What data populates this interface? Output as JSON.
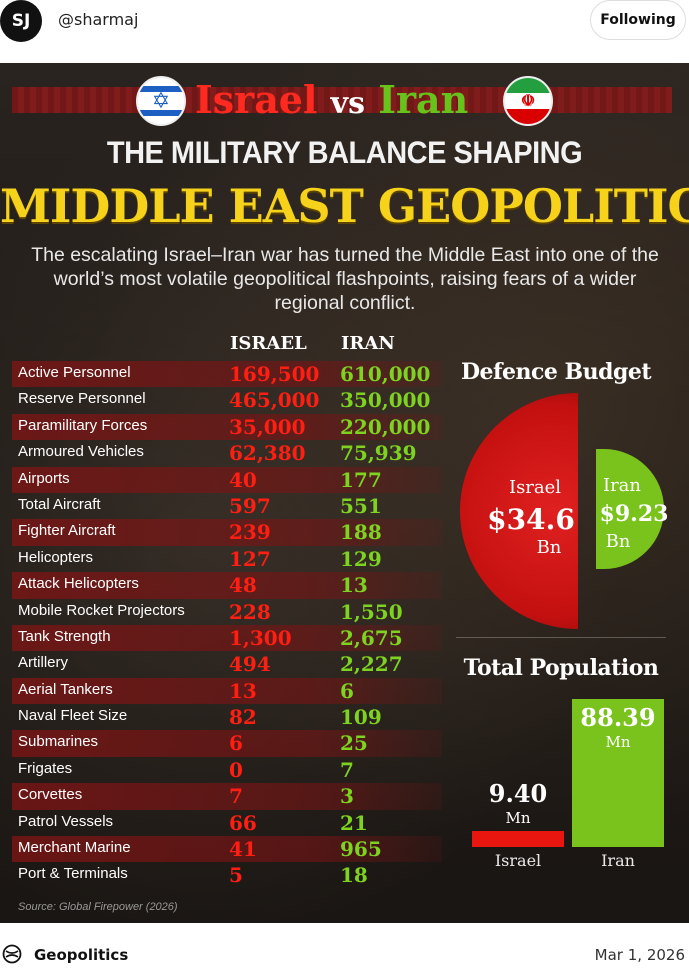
{
  "post": {
    "avatar_initials": "SJ",
    "username": "@sharmaj",
    "follow_label": "Following",
    "community": "Geopolitics",
    "date": "Mar 1, 2026"
  },
  "infographic": {
    "title_israel": "Israel",
    "title_vs": "vs",
    "title_iran": "Iran",
    "subtitle": "THE MILITARY BALANCE SHAPING",
    "headline": "MIDDLE EAST GEOPOLITICS",
    "intro": "The escalating Israel–Iran war has turned the Middle East into one of the world’s most volatile geopolitical flashpoints, raising fears of a wider regional conflict.",
    "col_israel": "ISRAEL",
    "col_iran": "IRAN",
    "source": "Source: Global Firepower (2026)",
    "colors": {
      "israel": "#ff1e12",
      "iran": "#7ed321",
      "headline": "#f7d21b"
    },
    "rows": [
      {
        "label": "Active Personnel",
        "israel": "169,500",
        "iran": "610,000"
      },
      {
        "label": "Reserve Personnel",
        "israel": "465,000",
        "iran": "350,000"
      },
      {
        "label": "Paramilitary Forces",
        "israel": "35,000",
        "iran": "220,000"
      },
      {
        "label": "Armoured Vehicles",
        "israel": "62,380",
        "iran": "75,939"
      },
      {
        "label": "Airports",
        "israel": "40",
        "iran": "177"
      },
      {
        "label": "Total Aircraft",
        "israel": "597",
        "iran": "551"
      },
      {
        "label": "Fighter Aircraft",
        "israel": "239",
        "iran": "188"
      },
      {
        "label": "Helicopters",
        "israel": "127",
        "iran": "129"
      },
      {
        "label": "Attack Helicopters",
        "israel": "48",
        "iran": "13"
      },
      {
        "label": "Mobile Rocket Projectors",
        "israel": "228",
        "iran": "1,550"
      },
      {
        "label": "Tank Strength",
        "israel": "1,300",
        "iran": "2,675"
      },
      {
        "label": "Artillery",
        "israel": "494",
        "iran": "2,227"
      },
      {
        "label": "Aerial Tankers",
        "israel": "13",
        "iran": "6"
      },
      {
        "label": "Naval Fleet Size",
        "israel": "82",
        "iran": "109"
      },
      {
        "label": "Submarines",
        "israel": "6",
        "iran": "25"
      },
      {
        "label": "Frigates",
        "israel": "0",
        "iran": "7"
      },
      {
        "label": "Corvettes",
        "israel": "7",
        "iran": "3"
      },
      {
        "label": "Patrol Vessels",
        "israel": "66",
        "iran": "21"
      },
      {
        "label": "Merchant Marine",
        "israel": "41",
        "iran": "965"
      },
      {
        "label": "Port & Terminals",
        "israel": "5",
        "iran": "18"
      }
    ],
    "budget": {
      "title": "Defence Budget",
      "israel_country": "Israel",
      "israel_value": "$34.6",
      "israel_unit": "Bn",
      "iran_country": "Iran",
      "iran_value": "$9.23",
      "iran_unit": "Bn"
    },
    "population": {
      "title": "Total Population",
      "israel_value": "9.40",
      "israel_unit": "Mn",
      "israel_label": "Israel",
      "iran_value": "88.39",
      "iran_unit": "Mn",
      "iran_label": "Iran"
    }
  }
}
